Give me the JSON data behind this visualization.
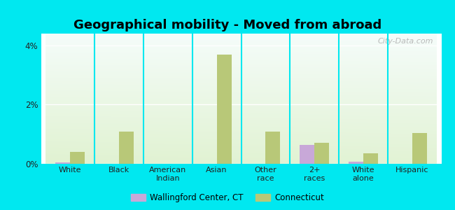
{
  "title": "Geographical mobility - Moved from abroad",
  "categories": [
    "White",
    "Black",
    "American\nIndian",
    "Asian",
    "Other\nrace",
    "2+\nraces",
    "White\nalone",
    "Hispanic"
  ],
  "wallingford_values": [
    0.05,
    0.0,
    0.0,
    0.0,
    0.0,
    0.65,
    0.07,
    0.0
  ],
  "connecticut_values": [
    0.4,
    1.1,
    0.0,
    3.7,
    1.1,
    0.7,
    0.35,
    1.05
  ],
  "wallingford_color": "#c8a8d8",
  "connecticut_color": "#b8c878",
  "bar_width": 0.3,
  "ylim": [
    0,
    4.4
  ],
  "ytick_vals": [
    0,
    2,
    4
  ],
  "ytick_labels": [
    "0%",
    "2%",
    "4%"
  ],
  "background_outer": "#00e8f0",
  "legend_wallingford": "Wallingford Center, CT",
  "legend_connecticut": "Connecticut",
  "watermark": "City-Data.com",
  "title_fontsize": 13,
  "tick_fontsize": 8,
  "legend_fontsize": 8.5
}
